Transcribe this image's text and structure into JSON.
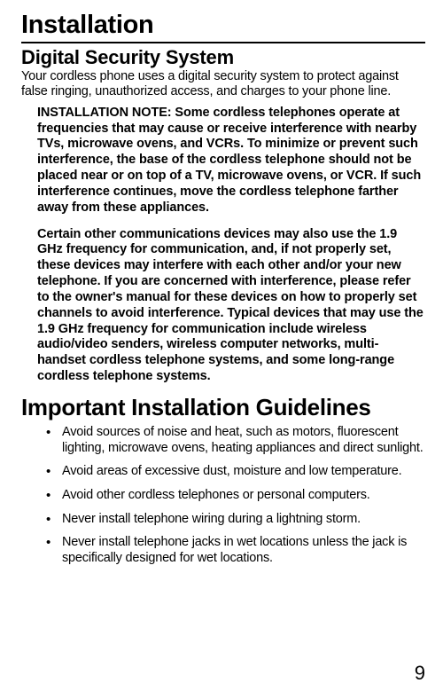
{
  "page": {
    "title": "Installation",
    "number": "9"
  },
  "digital": {
    "heading": "Digital Security System",
    "intro": "Your cordless phone uses a digital security system to protect against false ringing, unauthorized access, and charges to your phone line.",
    "note1": "INSTALLATION NOTE: Some cordless telephones operate at frequencies that may cause or receive interference with nearby TVs, microwave ovens, and VCRs. To minimize or prevent such interference, the base of the cordless telephone should not be placed near or on top of a TV, microwave ovens, or VCR. If such interference continues, move the cordless telephone farther away from these appliances.",
    "note2": "Certain other communications devices may also use the 1.9 GHz frequency for communication, and, if not properly set, these devices may interfere with each other and/or your new telephone. If you are concerned with interference, please refer to the owner's manual for these devices on how to properly set channels to avoid interference. Typical devices that may use the 1.9 GHz frequency for communication include wireless audio/video senders, wireless computer networks, multi-handset cordless telephone systems, and some long-range cordless telephone systems."
  },
  "guidelines": {
    "heading": "Important Installation Guidelines",
    "items": [
      "Avoid sources of noise and heat, such as motors, fluorescent lighting, microwave ovens, heating appliances and direct sunlight.",
      "Avoid areas of excessive dust, moisture and low temperature.",
      "Avoid other cordless telephones or personal computers.",
      "Never install telephone wiring during a lightning storm.",
      "Never install telephone jacks in wet locations unless the jack is specifically designed for wet locations."
    ]
  }
}
